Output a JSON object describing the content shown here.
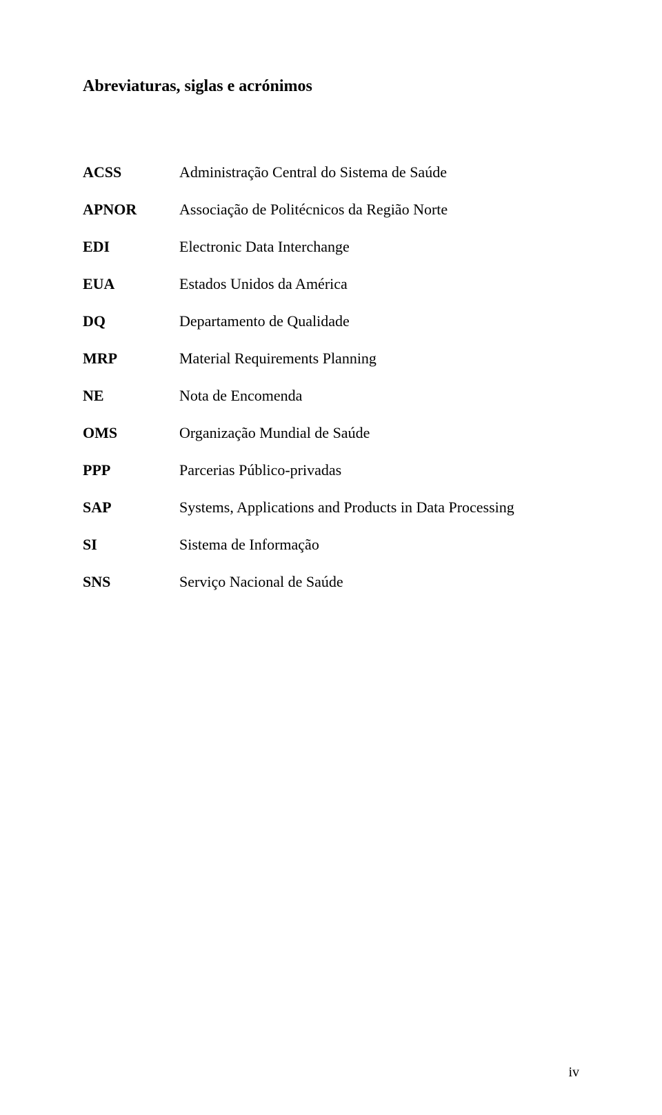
{
  "title": "Abreviaturas, siglas e acrónimos",
  "entries": [
    {
      "abbr": "ACSS",
      "def": "Administração Central do Sistema de Saúde"
    },
    {
      "abbr": "APNOR",
      "def": "Associação de Politécnicos da Região Norte"
    },
    {
      "abbr": "EDI",
      "def": "Electronic Data Interchange"
    },
    {
      "abbr": "EUA",
      "def": "Estados Unidos da América"
    },
    {
      "abbr": "DQ",
      "def": "Departamento de Qualidade"
    },
    {
      "abbr": "MRP",
      "def": "Material Requirements Planning"
    },
    {
      "abbr": "NE",
      "def": "Nota de Encomenda"
    },
    {
      "abbr": "OMS",
      "def": "Organização Mundial de Saúde"
    },
    {
      "abbr": "PPP",
      "def": "Parcerias Público-privadas"
    },
    {
      "abbr": "SAP",
      "def": "Systems, Applications and Products in Data Processing"
    },
    {
      "abbr": "SI",
      "def": "Sistema de Informação"
    },
    {
      "abbr": "SNS",
      "def": "Serviço Nacional de Saúde"
    }
  ],
  "page_number": "iv"
}
